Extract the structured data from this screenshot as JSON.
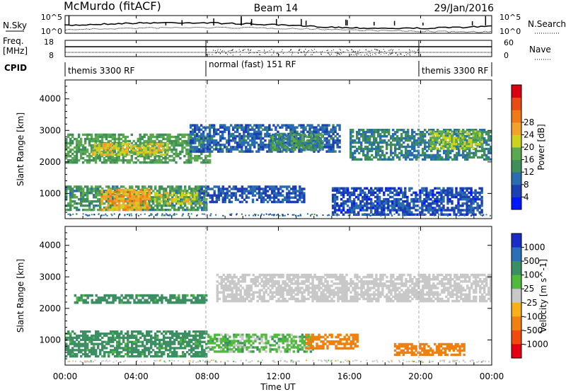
{
  "header": {
    "station": "McMurdo (fitACF)",
    "beam": "Beam 14",
    "date": "29/Jan/2016"
  },
  "noise_panel": {
    "left_label": "N.Sky",
    "right_label": "N.Search",
    "left_ticks": [
      "10^5",
      "10^0"
    ],
    "right_ticks": [
      "10^5",
      "10^0"
    ]
  },
  "freq_panel": {
    "left_label_1": "Freq.",
    "left_label_2": "[MHz]",
    "right_label": "Nave",
    "left_ticks": [
      "18",
      "8"
    ],
    "right_ticks": [
      "60",
      "0"
    ]
  },
  "cpid": {
    "label": "CPID",
    "segments": [
      "themis 3300 RF",
      "normal (fast) 151 RF",
      "themis 3300 RF"
    ]
  },
  "x_axis": {
    "title": "Time UT",
    "ticks": [
      "00:00",
      "04:00",
      "08:00",
      "12:00",
      "16:00",
      "20:00",
      "00:00"
    ]
  },
  "chart_data": [
    {
      "type": "heatmap",
      "title": "",
      "xlabel": "Time UT",
      "ylabel": "Slant Range [km]",
      "x_ticks": [
        "00:00",
        "04:00",
        "08:00",
        "12:00",
        "16:00",
        "20:00",
        "00:00"
      ],
      "y_ticks": [
        1000,
        2000,
        3000,
        4000
      ],
      "colorbar_label": "Power [dB]",
      "colorbar_ticks": [
        4,
        8,
        12,
        16,
        20,
        24,
        28
      ],
      "colorbar_colors": [
        "#0018ff",
        "#1c3fb4",
        "#2a6cb0",
        "#3f8f5a",
        "#5aa84f",
        "#cdd21f",
        "#f2a22a",
        "#f07a16",
        "#e84c14",
        "#d9000f"
      ],
      "bands": [
        {
          "start_hour": 0.0,
          "end_hour": 8.2,
          "range_low_km": 1950,
          "range_high_km": 2900,
          "power_db": 16
        },
        {
          "start_hour": 1.5,
          "end_hour": 5.8,
          "range_low_km": 2200,
          "range_high_km": 2600,
          "power_db": 22
        },
        {
          "start_hour": 0.0,
          "end_hour": 8.0,
          "range_low_km": 450,
          "range_high_km": 1250,
          "power_db": 15
        },
        {
          "start_hour": 2.0,
          "end_hour": 4.8,
          "range_low_km": 450,
          "range_high_km": 1150,
          "power_db": 26
        },
        {
          "start_hour": 5.0,
          "end_hour": 7.7,
          "range_low_km": 650,
          "range_high_km": 1050,
          "power_db": 21
        },
        {
          "start_hour": 7.0,
          "end_hour": 15.5,
          "range_low_km": 2300,
          "range_high_km": 3200,
          "power_db": 9
        },
        {
          "start_hour": 11.5,
          "end_hour": 14.5,
          "range_low_km": 2350,
          "range_high_km": 2900,
          "power_db": 14
        },
        {
          "start_hour": 7.5,
          "end_hour": 13.5,
          "range_low_km": 700,
          "range_high_km": 1250,
          "power_db": 8
        },
        {
          "start_hour": 16.0,
          "end_hour": 24.0,
          "range_low_km": 2050,
          "range_high_km": 3050,
          "power_db": 12
        },
        {
          "start_hour": 20.5,
          "end_hour": 23.5,
          "range_low_km": 2400,
          "range_high_km": 3000,
          "power_db": 20
        },
        {
          "start_hour": 15.0,
          "end_hour": 23.5,
          "range_low_km": 300,
          "range_high_km": 1200,
          "power_db": 7
        }
      ]
    },
    {
      "type": "heatmap",
      "title": "",
      "xlabel": "Time UT",
      "ylabel": "Slant Range [km]",
      "x_ticks": [
        "00:00",
        "04:00",
        "08:00",
        "12:00",
        "16:00",
        "20:00",
        "00:00"
      ],
      "y_ticks": [
        1000,
        2000,
        3000,
        4000
      ],
      "colorbar_label": "Velocity [m s^-1]",
      "colorbar_ticks": [
        "1000",
        "500",
        "100",
        "25",
        "-25",
        "-100",
        "-500",
        "-1000"
      ],
      "colorbar_colors": [
        "#1a2bc8",
        "#2b6fb7",
        "#3c8f63",
        "#4fbb3c",
        "#c8c8c8",
        "#f7b017",
        "#f0800f",
        "#f04a0d",
        "#e40010"
      ],
      "bands": [
        {
          "start_hour": 0.5,
          "end_hour": 8.0,
          "range_low_km": 2150,
          "range_high_km": 2450,
          "velocity_ms": 150
        },
        {
          "start_hour": 0.0,
          "end_hour": 8.0,
          "range_low_km": 450,
          "range_high_km": 1300,
          "velocity_ms": 150
        },
        {
          "start_hour": 8.5,
          "end_hour": 24.0,
          "range_low_km": 2200,
          "range_high_km": 3100,
          "velocity_ms": 0
        },
        {
          "start_hour": 8.0,
          "end_hour": 14.0,
          "range_low_km": 600,
          "range_high_km": 1200,
          "velocity_ms": 60
        },
        {
          "start_hour": 18.5,
          "end_hour": 22.5,
          "range_low_km": 500,
          "range_high_km": 900,
          "velocity_ms": -300
        },
        {
          "start_hour": 13.5,
          "end_hour": 16.5,
          "range_low_km": 700,
          "range_high_km": 1200,
          "velocity_ms": -200
        }
      ]
    }
  ]
}
